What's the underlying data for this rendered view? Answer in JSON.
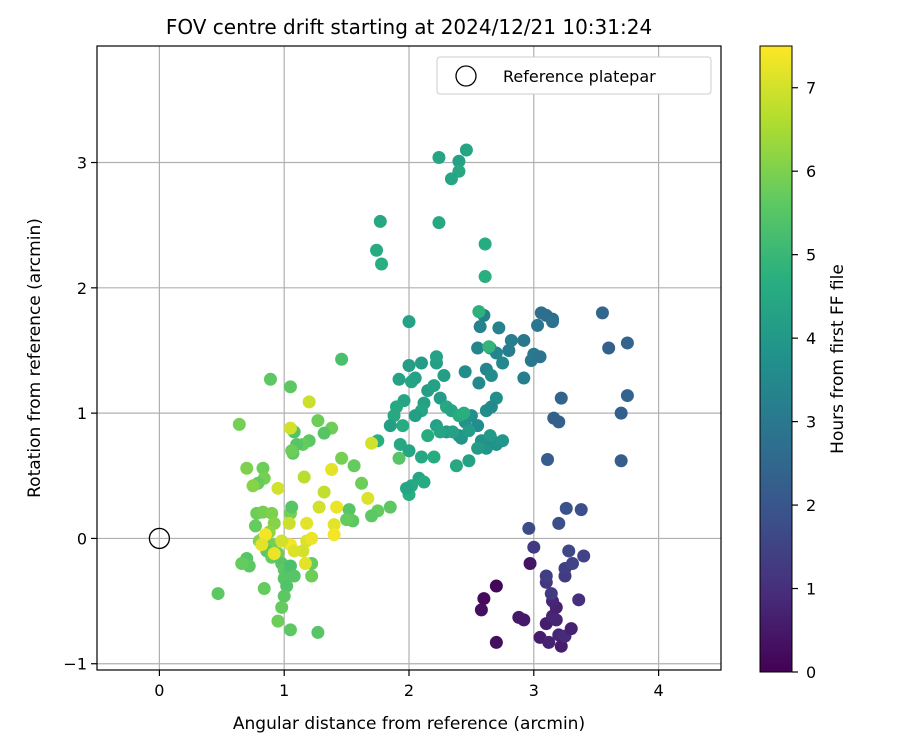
{
  "chart_data": {
    "type": "scatter",
    "title": "FOV centre drift starting at 2024/12/21 10:31:24",
    "xlabel": "Angular distance from reference (arcmin)",
    "ylabel": "Rotation from reference (arcmin)",
    "xlim": [
      -0.5,
      4.5
    ],
    "ylim": [
      -1.05,
      3.93
    ],
    "xticks": [
      "0",
      "1",
      "2",
      "3",
      "4"
    ],
    "yticks": [
      "−1",
      "0",
      "1",
      "2",
      "3"
    ],
    "grid": true,
    "legend": {
      "position": "top-right",
      "entries": [
        "Reference platepar"
      ]
    },
    "reference_point": {
      "x": 0,
      "y": 0
    },
    "colorbar": {
      "label": "Hours from first FF file",
      "range": [
        0,
        7.5
      ],
      "ticks": [
        "0",
        "1",
        "2",
        "3",
        "4",
        "5",
        "6",
        "7"
      ],
      "colormap": "viridis"
    },
    "points": [
      {
        "x": 2.6,
        "y": -0.48,
        "c": 0.2
      },
      {
        "x": 2.58,
        "y": -0.57,
        "c": 0.3
      },
      {
        "x": 2.7,
        "y": -0.38,
        "c": 0.1
      },
      {
        "x": 2.7,
        "y": -0.83,
        "c": 0.3
      },
      {
        "x": 2.97,
        "y": -0.2,
        "c": 0.4
      },
      {
        "x": 2.88,
        "y": -0.63,
        "c": 0.5
      },
      {
        "x": 2.92,
        "y": -0.65,
        "c": 0.5
      },
      {
        "x": 3.05,
        "y": -0.79,
        "c": 0.6
      },
      {
        "x": 3.1,
        "y": -0.68,
        "c": 0.6
      },
      {
        "x": 3.12,
        "y": -0.83,
        "c": 0.7
      },
      {
        "x": 3.15,
        "y": -0.62,
        "c": 0.8
      },
      {
        "x": 3.18,
        "y": -0.55,
        "c": 0.7
      },
      {
        "x": 3.15,
        "y": -0.5,
        "c": 0.8
      },
      {
        "x": 3.2,
        "y": -0.77,
        "c": 0.8
      },
      {
        "x": 3.22,
        "y": -0.86,
        "c": 0.6
      },
      {
        "x": 3.25,
        "y": -0.78,
        "c": 0.9
      },
      {
        "x": 3.3,
        "y": -0.72,
        "c": 0.7
      },
      {
        "x": 3.18,
        "y": -0.65,
        "c": 0.8
      },
      {
        "x": 3.36,
        "y": -0.49,
        "c": 1.0
      },
      {
        "x": 3.14,
        "y": -0.44,
        "c": 1.3
      },
      {
        "x": 3.1,
        "y": -0.35,
        "c": 1.2
      },
      {
        "x": 3.1,
        "y": -0.3,
        "c": 1.4
      },
      {
        "x": 3.25,
        "y": -0.3,
        "c": 1.3
      },
      {
        "x": 3.25,
        "y": -0.24,
        "c": 1.4
      },
      {
        "x": 3.31,
        "y": -0.2,
        "c": 1.5
      },
      {
        "x": 3.28,
        "y": -0.1,
        "c": 1.6
      },
      {
        "x": 3.4,
        "y": -0.14,
        "c": 1.5
      },
      {
        "x": 3.0,
        "y": -0.07,
        "c": 1.3
      },
      {
        "x": 2.96,
        "y": 0.08,
        "c": 1.7
      },
      {
        "x": 3.2,
        "y": 0.12,
        "c": 1.8
      },
      {
        "x": 3.26,
        "y": 0.24,
        "c": 1.9
      },
      {
        "x": 3.38,
        "y": 0.23,
        "c": 1.8
      },
      {
        "x": 3.11,
        "y": 0.63,
        "c": 2.2
      },
      {
        "x": 3.16,
        "y": 0.96,
        "c": 2.3
      },
      {
        "x": 3.2,
        "y": 0.93,
        "c": 2.3
      },
      {
        "x": 3.22,
        "y": 1.12,
        "c": 2.4
      },
      {
        "x": 3.7,
        "y": 0.62,
        "c": 2.2
      },
      {
        "x": 3.7,
        "y": 1.0,
        "c": 2.3
      },
      {
        "x": 3.75,
        "y": 1.14,
        "c": 2.4
      },
      {
        "x": 3.75,
        "y": 1.56,
        "c": 2.4
      },
      {
        "x": 3.6,
        "y": 1.52,
        "c": 2.3
      },
      {
        "x": 3.55,
        "y": 1.8,
        "c": 2.5
      },
      {
        "x": 3.06,
        "y": 1.8,
        "c": 2.7
      },
      {
        "x": 3.1,
        "y": 1.78,
        "c": 2.7
      },
      {
        "x": 3.15,
        "y": 1.75,
        "c": 2.6
      },
      {
        "x": 3.15,
        "y": 1.73,
        "c": 2.8
      },
      {
        "x": 3.03,
        "y": 1.7,
        "c": 2.9
      },
      {
        "x": 3.0,
        "y": 1.47,
        "c": 3.0
      },
      {
        "x": 2.98,
        "y": 1.42,
        "c": 3.0
      },
      {
        "x": 3.05,
        "y": 1.45,
        "c": 2.9
      },
      {
        "x": 2.92,
        "y": 1.58,
        "c": 3.0
      },
      {
        "x": 2.92,
        "y": 1.28,
        "c": 3.2
      },
      {
        "x": 2.8,
        "y": 1.5,
        "c": 3.1
      },
      {
        "x": 2.82,
        "y": 1.58,
        "c": 3.2
      },
      {
        "x": 2.72,
        "y": 1.68,
        "c": 3.3
      },
      {
        "x": 2.6,
        "y": 1.78,
        "c": 3.2
      },
      {
        "x": 2.57,
        "y": 1.69,
        "c": 3.3
      },
      {
        "x": 2.55,
        "y": 1.52,
        "c": 3.4
      },
      {
        "x": 2.65,
        "y": 1.52,
        "c": 3.5
      },
      {
        "x": 2.7,
        "y": 1.48,
        "c": 3.4
      },
      {
        "x": 2.75,
        "y": 1.4,
        "c": 3.5
      },
      {
        "x": 2.62,
        "y": 1.35,
        "c": 3.4
      },
      {
        "x": 2.66,
        "y": 1.3,
        "c": 3.6
      },
      {
        "x": 2.56,
        "y": 1.24,
        "c": 3.5
      },
      {
        "x": 2.45,
        "y": 1.33,
        "c": 3.6
      },
      {
        "x": 2.7,
        "y": 1.12,
        "c": 3.7
      },
      {
        "x": 2.62,
        "y": 1.02,
        "c": 3.6
      },
      {
        "x": 2.66,
        "y": 1.05,
        "c": 3.5
      },
      {
        "x": 2.5,
        "y": 0.98,
        "c": 3.7
      },
      {
        "x": 2.45,
        "y": 0.93,
        "c": 3.8
      },
      {
        "x": 2.4,
        "y": 0.82,
        "c": 3.7
      },
      {
        "x": 2.42,
        "y": 0.8,
        "c": 3.9
      },
      {
        "x": 2.55,
        "y": 0.9,
        "c": 3.6
      },
      {
        "x": 2.58,
        "y": 0.78,
        "c": 3.8
      },
      {
        "x": 2.62,
        "y": 0.72,
        "c": 3.9
      },
      {
        "x": 2.66,
        "y": 0.79,
        "c": 3.7
      },
      {
        "x": 2.7,
        "y": 0.75,
        "c": 3.8
      },
      {
        "x": 2.75,
        "y": 0.78,
        "c": 3.9
      },
      {
        "x": 2.65,
        "y": 0.82,
        "c": 4.0
      },
      {
        "x": 2.55,
        "y": 0.72,
        "c": 4.1
      },
      {
        "x": 2.48,
        "y": 0.86,
        "c": 4.1
      },
      {
        "x": 2.3,
        "y": 0.85,
        "c": 4.0
      },
      {
        "x": 2.25,
        "y": 1.12,
        "c": 4.1
      },
      {
        "x": 2.28,
        "y": 1.3,
        "c": 4.2
      },
      {
        "x": 2.22,
        "y": 1.4,
        "c": 4.2
      },
      {
        "x": 2.22,
        "y": 1.45,
        "c": 4.3
      },
      {
        "x": 2.1,
        "y": 1.4,
        "c": 4.1
      },
      {
        "x": 2.0,
        "y": 1.38,
        "c": 4.2
      },
      {
        "x": 2.02,
        "y": 1.25,
        "c": 4.4
      },
      {
        "x": 2.05,
        "y": 1.28,
        "c": 4.3
      },
      {
        "x": 2.15,
        "y": 1.18,
        "c": 4.2
      },
      {
        "x": 2.2,
        "y": 1.22,
        "c": 4.3
      },
      {
        "x": 2.12,
        "y": 1.08,
        "c": 4.3
      },
      {
        "x": 2.1,
        "y": 1.02,
        "c": 4.4
      },
      {
        "x": 2.05,
        "y": 0.98,
        "c": 4.2
      },
      {
        "x": 1.96,
        "y": 1.1,
        "c": 4.4
      },
      {
        "x": 1.92,
        "y": 1.27,
        "c": 4.3
      },
      {
        "x": 1.9,
        "y": 1.05,
        "c": 4.5
      },
      {
        "x": 1.88,
        "y": 0.98,
        "c": 4.5
      },
      {
        "x": 1.85,
        "y": 0.9,
        "c": 4.2
      },
      {
        "x": 1.95,
        "y": 0.9,
        "c": 4.6
      },
      {
        "x": 1.93,
        "y": 0.75,
        "c": 4.5
      },
      {
        "x": 2.0,
        "y": 0.7,
        "c": 4.4
      },
      {
        "x": 2.1,
        "y": 0.65,
        "c": 4.5
      },
      {
        "x": 2.15,
        "y": 0.82,
        "c": 4.6
      },
      {
        "x": 2.22,
        "y": 0.9,
        "c": 4.3
      },
      {
        "x": 2.25,
        "y": 0.85,
        "c": 4.4
      },
      {
        "x": 2.3,
        "y": 1.05,
        "c": 4.5
      },
      {
        "x": 2.34,
        "y": 1.02,
        "c": 4.4
      },
      {
        "x": 2.4,
        "y": 0.98,
        "c": 4.6
      },
      {
        "x": 2.44,
        "y": 1.0,
        "c": 4.7
      },
      {
        "x": 2.35,
        "y": 0.85,
        "c": 4.3
      },
      {
        "x": 2.48,
        "y": 0.62,
        "c": 4.3
      },
      {
        "x": 2.38,
        "y": 0.58,
        "c": 4.5
      },
      {
        "x": 2.2,
        "y": 0.65,
        "c": 4.6
      },
      {
        "x": 2.08,
        "y": 0.48,
        "c": 4.4
      },
      {
        "x": 2.02,
        "y": 0.42,
        "c": 4.5
      },
      {
        "x": 2.12,
        "y": 0.45,
        "c": 4.6
      },
      {
        "x": 2.0,
        "y": 0.35,
        "c": 4.7
      },
      {
        "x": 1.98,
        "y": 0.4,
        "c": 4.4
      },
      {
        "x": 2.0,
        "y": 1.73,
        "c": 4.3
      },
      {
        "x": 2.56,
        "y": 1.81,
        "c": 4.8
      },
      {
        "x": 2.64,
        "y": 1.53,
        "c": 4.9
      },
      {
        "x": 1.75,
        "y": 0.78,
        "c": 4.7
      },
      {
        "x": 2.24,
        "y": 3.04,
        "c": 4.4
      },
      {
        "x": 2.4,
        "y": 3.01,
        "c": 4.3
      },
      {
        "x": 2.46,
        "y": 3.1,
        "c": 4.4
      },
      {
        "x": 2.4,
        "y": 2.93,
        "c": 4.5
      },
      {
        "x": 2.34,
        "y": 2.87,
        "c": 4.4
      },
      {
        "x": 2.24,
        "y": 2.52,
        "c": 4.5
      },
      {
        "x": 2.61,
        "y": 2.35,
        "c": 4.6
      },
      {
        "x": 2.61,
        "y": 2.09,
        "c": 4.7
      },
      {
        "x": 1.77,
        "y": 2.53,
        "c": 4.5
      },
      {
        "x": 1.74,
        "y": 2.3,
        "c": 4.6
      },
      {
        "x": 1.78,
        "y": 2.19,
        "c": 4.7
      },
      {
        "x": 1.46,
        "y": 1.43,
        "c": 5.3
      },
      {
        "x": 1.92,
        "y": 0.64,
        "c": 5.5
      },
      {
        "x": 1.85,
        "y": 0.25,
        "c": 5.6
      },
      {
        "x": 1.75,
        "y": 0.22,
        "c": 5.7
      },
      {
        "x": 1.7,
        "y": 0.18,
        "c": 5.6
      },
      {
        "x": 1.62,
        "y": 0.44,
        "c": 5.8
      },
      {
        "x": 1.56,
        "y": 0.58,
        "c": 5.7
      },
      {
        "x": 1.52,
        "y": 0.23,
        "c": 5.5
      },
      {
        "x": 1.55,
        "y": 0.14,
        "c": 5.6
      },
      {
        "x": 1.5,
        "y": 0.15,
        "c": 5.7
      },
      {
        "x": 1.46,
        "y": 0.64,
        "c": 5.9
      },
      {
        "x": 1.38,
        "y": 0.88,
        "c": 5.8
      },
      {
        "x": 1.32,
        "y": 0.84,
        "c": 5.5
      },
      {
        "x": 1.27,
        "y": 0.94,
        "c": 5.8
      },
      {
        "x": 1.2,
        "y": 0.78,
        "c": 5.6
      },
      {
        "x": 1.15,
        "y": 0.75,
        "c": 5.7
      },
      {
        "x": 1.1,
        "y": 0.75,
        "c": 5.5
      },
      {
        "x": 1.08,
        "y": 0.85,
        "c": 5.4
      },
      {
        "x": 1.07,
        "y": 0.68,
        "c": 5.6
      },
      {
        "x": 1.05,
        "y": 1.21,
        "c": 5.6
      },
      {
        "x": 0.89,
        "y": 1.27,
        "c": 5.6
      },
      {
        "x": 0.64,
        "y": 0.91,
        "c": 5.9
      },
      {
        "x": 0.7,
        "y": 0.56,
        "c": 6.0
      },
      {
        "x": 0.83,
        "y": 0.56,
        "c": 5.8
      },
      {
        "x": 0.84,
        "y": 0.48,
        "c": 5.9
      },
      {
        "x": 0.79,
        "y": 0.44,
        "c": 5.7
      },
      {
        "x": 0.75,
        "y": 0.42,
        "c": 6.1
      },
      {
        "x": 0.78,
        "y": 0.2,
        "c": 5.8
      },
      {
        "x": 0.83,
        "y": 0.21,
        "c": 5.9
      },
      {
        "x": 0.9,
        "y": 0.2,
        "c": 6.0
      },
      {
        "x": 0.92,
        "y": 0.12,
        "c": 6.1
      },
      {
        "x": 0.77,
        "y": 0.1,
        "c": 5.7
      },
      {
        "x": 0.83,
        "y": 0.0,
        "c": 5.8
      },
      {
        "x": 0.8,
        "y": -0.02,
        "c": 6.1
      },
      {
        "x": 0.88,
        "y": 0.05,
        "c": 6.2
      },
      {
        "x": 0.9,
        "y": -0.05,
        "c": 5.9
      },
      {
        "x": 0.86,
        "y": -0.1,
        "c": 5.6
      },
      {
        "x": 0.9,
        "y": -0.15,
        "c": 5.7
      },
      {
        "x": 0.95,
        "y": -0.12,
        "c": 5.8
      },
      {
        "x": 0.98,
        "y": -0.2,
        "c": 5.5
      },
      {
        "x": 1.0,
        "y": -0.25,
        "c": 5.6
      },
      {
        "x": 1.03,
        "y": -0.28,
        "c": 5.4
      },
      {
        "x": 1.05,
        "y": -0.22,
        "c": 5.3
      },
      {
        "x": 1.0,
        "y": -0.32,
        "c": 5.5
      },
      {
        "x": 1.02,
        "y": -0.38,
        "c": 5.4
      },
      {
        "x": 1.08,
        "y": -0.3,
        "c": 5.5
      },
      {
        "x": 1.0,
        "y": -0.46,
        "c": 5.6
      },
      {
        "x": 0.98,
        "y": -0.55,
        "c": 5.7
      },
      {
        "x": 0.95,
        "y": -0.66,
        "c": 5.8
      },
      {
        "x": 1.05,
        "y": -0.73,
        "c": 5.6
      },
      {
        "x": 0.84,
        "y": -0.4,
        "c": 5.7
      },
      {
        "x": 0.7,
        "y": -0.16,
        "c": 5.5
      },
      {
        "x": 0.72,
        "y": -0.22,
        "c": 5.6
      },
      {
        "x": 0.66,
        "y": -0.2,
        "c": 5.7
      },
      {
        "x": 0.47,
        "y": -0.44,
        "c": 5.6
      },
      {
        "x": 1.05,
        "y": 0.2,
        "c": 5.9
      },
      {
        "x": 1.06,
        "y": 0.25,
        "c": 5.5
      },
      {
        "x": 1.06,
        "y": 0.7,
        "c": 5.8
      },
      {
        "x": 1.22,
        "y": -0.3,
        "c": 5.8
      },
      {
        "x": 1.27,
        "y": -0.75,
        "c": 5.5
      },
      {
        "x": 1.22,
        "y": -0.2,
        "c": 5.7
      },
      {
        "x": 1.7,
        "y": 0.76,
        "c": 7.0
      },
      {
        "x": 1.67,
        "y": 0.32,
        "c": 7.1
      },
      {
        "x": 1.42,
        "y": 0.25,
        "c": 7.3
      },
      {
        "x": 1.4,
        "y": 0.11,
        "c": 7.2
      },
      {
        "x": 1.4,
        "y": 0.03,
        "c": 7.4
      },
      {
        "x": 1.38,
        "y": 0.55,
        "c": 7.2
      },
      {
        "x": 1.28,
        "y": 0.25,
        "c": 7.0
      },
      {
        "x": 1.32,
        "y": 0.37,
        "c": 6.8
      },
      {
        "x": 1.16,
        "y": 0.49,
        "c": 6.7
      },
      {
        "x": 1.2,
        "y": 1.09,
        "c": 6.9
      },
      {
        "x": 1.05,
        "y": 0.88,
        "c": 7.0
      },
      {
        "x": 1.18,
        "y": 0.12,
        "c": 7.2
      },
      {
        "x": 1.18,
        "y": -0.02,
        "c": 7.1
      },
      {
        "x": 1.22,
        "y": 0.0,
        "c": 7.3
      },
      {
        "x": 1.15,
        "y": -0.1,
        "c": 7.0
      },
      {
        "x": 1.17,
        "y": -0.2,
        "c": 7.2
      },
      {
        "x": 1.05,
        "y": -0.05,
        "c": 7.4
      },
      {
        "x": 1.08,
        "y": -0.1,
        "c": 7.1
      },
      {
        "x": 0.98,
        "y": -0.02,
        "c": 7.0
      },
      {
        "x": 1.04,
        "y": 0.12,
        "c": 6.9
      },
      {
        "x": 0.92,
        "y": -0.12,
        "c": 7.3
      },
      {
        "x": 0.85,
        "y": 0.03,
        "c": 7.4
      },
      {
        "x": 0.82,
        "y": -0.05,
        "c": 7.2
      },
      {
        "x": 0.95,
        "y": 0.4,
        "c": 7.0
      }
    ]
  }
}
